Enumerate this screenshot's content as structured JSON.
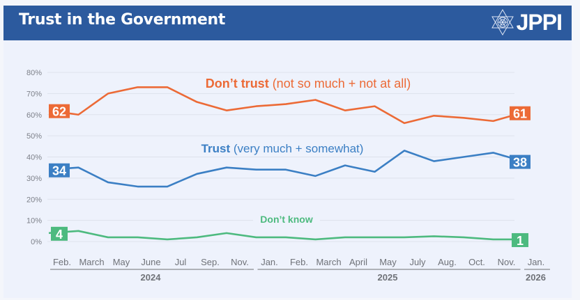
{
  "header": {
    "title": "Trust in the Government",
    "logo_text": "JPPI",
    "logo_icon": "star-of-david-icon"
  },
  "chart_data": {
    "type": "line",
    "title": "Trust in the Government",
    "xlabel": "",
    "ylabel": "",
    "ylim": [
      0,
      80
    ],
    "yticks": [
      0,
      10,
      20,
      30,
      40,
      50,
      60,
      70,
      80
    ],
    "ytick_labels": [
      "0%",
      "10%",
      "20%",
      "30%",
      "40%",
      "50%",
      "60%",
      "70%",
      "80%"
    ],
    "grid": true,
    "categories": [
      "Feb.",
      "March",
      "May",
      "June",
      "Jul",
      "Sep.",
      "Nov.",
      "Jan.",
      "Feb.",
      "March",
      "April",
      "May",
      "July",
      "Aug.",
      "Oct.",
      "Nov.",
      "Jan."
    ],
    "year_groups": [
      {
        "label": "2024",
        "start": 0,
        "end": 6
      },
      {
        "label": "2025",
        "start": 7,
        "end": 15
      },
      {
        "label": "2026",
        "start": 16,
        "end": 16
      }
    ],
    "series": [
      {
        "name": "Don't trust",
        "label_bold": "Don’t trust",
        "label_rest": " (not so much + not at all)",
        "color": "#ec6a36",
        "values": [
          62,
          60,
          70,
          73,
          73,
          66,
          62,
          64,
          65,
          67,
          62,
          64,
          56,
          59.5,
          58.5,
          57,
          61
        ],
        "start_label": "62",
        "end_label": "61"
      },
      {
        "name": "Trust",
        "label_bold": "Trust",
        "label_rest": " (very much + somewhat)",
        "color": "#3b7fc4",
        "values": [
          34,
          35,
          28,
          26,
          26,
          32,
          35,
          34,
          34,
          31,
          36,
          33,
          43,
          38,
          40,
          42,
          38
        ],
        "start_label": "34",
        "end_label": "38"
      },
      {
        "name": "Don't know",
        "label_bold": "Don’t know",
        "label_rest": "",
        "color": "#4dba7f",
        "values": [
          4,
          5,
          2,
          2,
          1,
          2,
          4,
          2,
          2,
          1,
          2,
          2,
          2,
          2.5,
          2,
          1,
          1
        ],
        "start_label": "4",
        "end_label": "1"
      }
    ],
    "legend": "inline-above-lines"
  }
}
